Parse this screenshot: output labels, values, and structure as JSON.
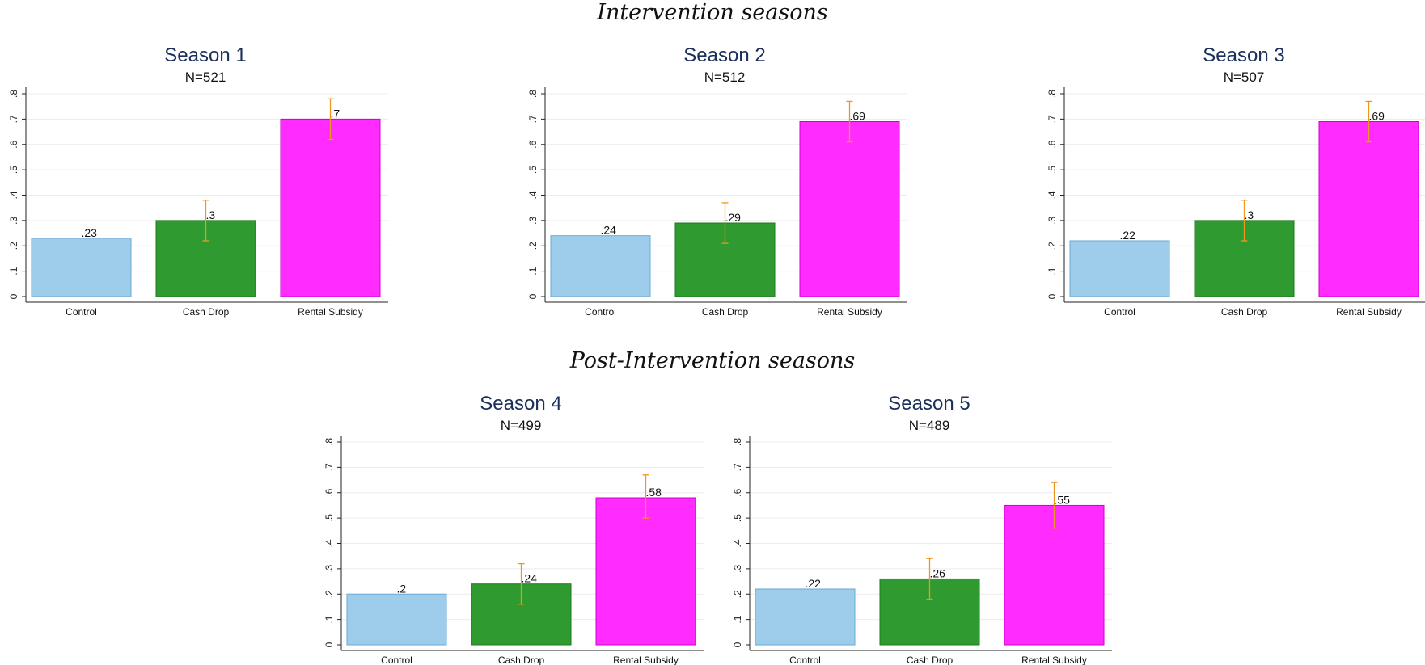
{
  "sections": {
    "intervention": "Intervention seasons",
    "post_intervention": "Post-Intervention seasons"
  },
  "colors": {
    "control": "#9dcdeb",
    "control_stroke": "#6aa9d6",
    "cash_drop": "#2f9a2f",
    "cash_drop_stroke": "#1d7a1d",
    "rental_subsidy": "#ff2bff",
    "rental_subsidy_stroke": "#cc00cc",
    "error_bar": "#f0961e",
    "title": "#1a2f5a",
    "grid": "#ececec"
  },
  "chart_data": [
    {
      "type": "bar",
      "title": "Season 1",
      "subtitle": "N=521",
      "categories": [
        "Control",
        "Cash Drop",
        "Rental Subsidy"
      ],
      "values": [
        0.23,
        0.3,
        0.7
      ],
      "value_labels": [
        ".23",
        ".3",
        ".7"
      ],
      "ci_low": [
        null,
        0.22,
        0.62
      ],
      "ci_high": [
        null,
        0.38,
        0.78
      ],
      "ylim": [
        0,
        0.8
      ],
      "yticks": [
        "0",
        ".1",
        ".2",
        ".3",
        ".4",
        ".5",
        ".6",
        ".7",
        ".8"
      ],
      "grid": true
    },
    {
      "type": "bar",
      "title": "Season 2",
      "subtitle": "N=512",
      "categories": [
        "Control",
        "Cash Drop",
        "Rental Subsidy"
      ],
      "values": [
        0.24,
        0.29,
        0.69
      ],
      "value_labels": [
        ".24",
        ".29",
        ".69"
      ],
      "ci_low": [
        null,
        0.21,
        0.61
      ],
      "ci_high": [
        null,
        0.37,
        0.77
      ],
      "ylim": [
        0,
        0.8
      ],
      "yticks": [
        "0",
        ".1",
        ".2",
        ".3",
        ".4",
        ".5",
        ".6",
        ".7",
        ".8"
      ],
      "grid": true
    },
    {
      "type": "bar",
      "title": "Season 3",
      "subtitle": "N=507",
      "categories": [
        "Control",
        "Cash Drop",
        "Rental Subsidy"
      ],
      "values": [
        0.22,
        0.3,
        0.69
      ],
      "value_labels": [
        ".22",
        ".3",
        ".69"
      ],
      "ci_low": [
        null,
        0.22,
        0.61
      ],
      "ci_high": [
        null,
        0.38,
        0.77
      ],
      "ylim": [
        0,
        0.8
      ],
      "yticks": [
        "0",
        ".1",
        ".2",
        ".3",
        ".4",
        ".5",
        ".6",
        ".7",
        ".8"
      ],
      "grid": true
    },
    {
      "type": "bar",
      "title": "Season 4",
      "subtitle": "N=499",
      "categories": [
        "Control",
        "Cash Drop",
        "Rental Subsidy"
      ],
      "values": [
        0.2,
        0.24,
        0.58
      ],
      "value_labels": [
        ".2",
        ".24",
        ".58"
      ],
      "ci_low": [
        null,
        0.16,
        0.5
      ],
      "ci_high": [
        null,
        0.32,
        0.67
      ],
      "ylim": [
        0,
        0.8
      ],
      "yticks": [
        "0",
        ".1",
        ".2",
        ".3",
        ".4",
        ".5",
        ".6",
        ".7",
        ".8"
      ],
      "grid": true
    },
    {
      "type": "bar",
      "title": "Season 5",
      "subtitle": "N=489",
      "categories": [
        "Control",
        "Cash Drop",
        "Rental Subsidy"
      ],
      "values": [
        0.22,
        0.26,
        0.55
      ],
      "value_labels": [
        ".22",
        ".26",
        ".55"
      ],
      "ci_low": [
        null,
        0.18,
        0.46
      ],
      "ci_high": [
        null,
        0.34,
        0.64
      ],
      "ylim": [
        0,
        0.8
      ],
      "yticks": [
        "0",
        ".1",
        ".2",
        ".3",
        ".4",
        ".5",
        ".6",
        ".7",
        ".8"
      ],
      "grid": true
    }
  ]
}
